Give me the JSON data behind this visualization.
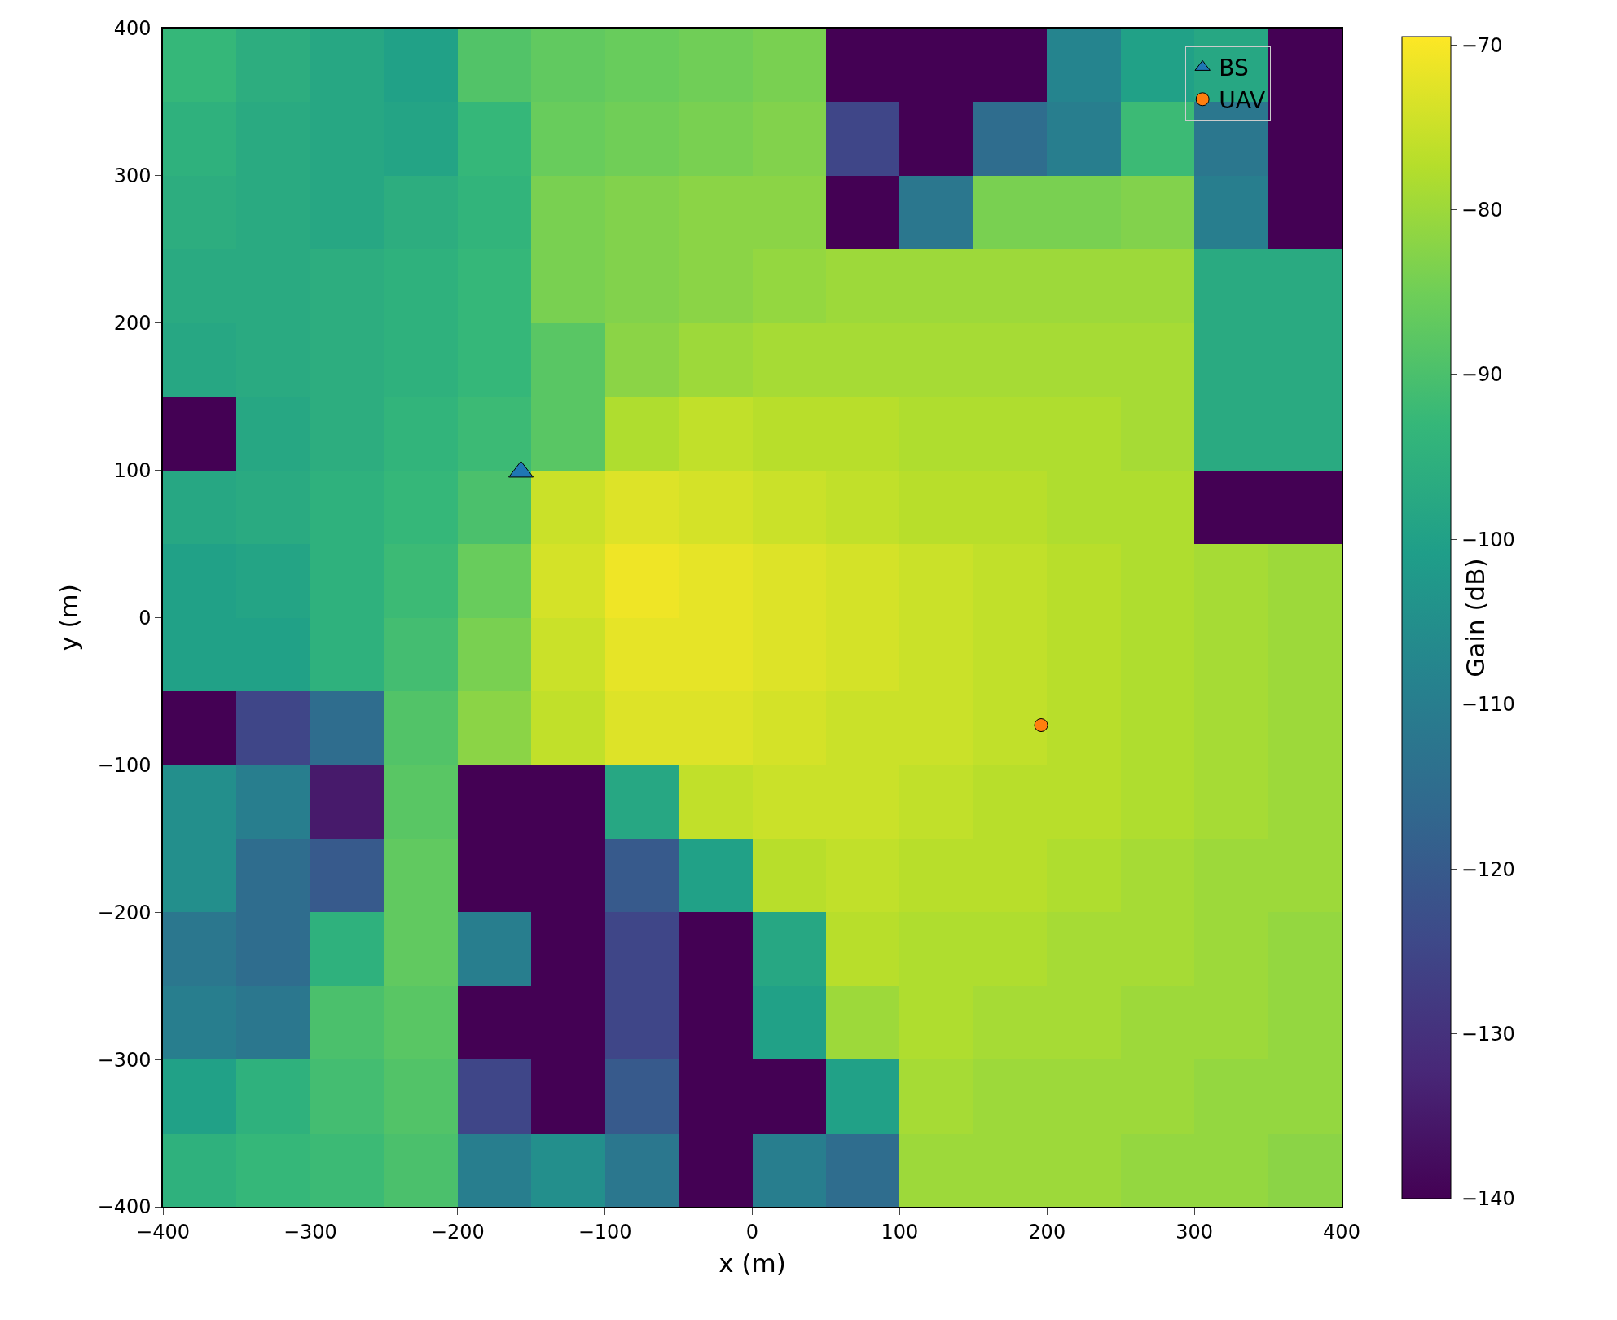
{
  "chart_data": {
    "type": "heatmap",
    "xlabel": "x (m)",
    "ylabel": "y (m)",
    "clabel": "Gain (dB)",
    "xlim": [
      -400,
      400
    ],
    "ylim": [
      -400,
      400
    ],
    "xticks": [
      -400,
      -300,
      -200,
      -100,
      0,
      100,
      200,
      300,
      400
    ],
    "yticks": [
      -400,
      -300,
      -200,
      -100,
      0,
      100,
      200,
      300,
      400
    ],
    "clim": [
      -140,
      -69.5
    ],
    "cticks": [
      -140,
      -130,
      -120,
      -110,
      -100,
      -90,
      -80,
      -70
    ],
    "legend": "top right",
    "cells": [
      [
        -93,
        -96,
        -98,
        -100,
        -89,
        -87,
        -86,
        -85,
        -84,
        -140,
        -140,
        -140,
        -108,
        -100,
        -98,
        -140
      ],
      [
        -95,
        -97,
        -98,
        -99,
        -93,
        -86,
        -85,
        -84,
        -83,
        -125,
        -140,
        -115,
        -110,
        -92,
        -112,
        -140
      ],
      [
        -96,
        -97,
        -98,
        -96,
        -94,
        -84,
        -83,
        -82,
        -82,
        -140,
        -112,
        -84,
        -84,
        -83,
        -110,
        -140
      ],
      [
        -97,
        -97,
        -96,
        -95,
        -93,
        -84,
        -83,
        -82,
        -81,
        -80,
        -80,
        -80,
        -80,
        -80,
        -97,
        -97
      ],
      [
        -98,
        -97,
        -96,
        -95,
        -93,
        -88,
        -82,
        -80,
        -79,
        -79,
        -79,
        -79,
        -79,
        -79,
        -97,
        -97
      ],
      [
        -140,
        -98,
        -96,
        -94,
        -92,
        -88,
        -78,
        -76,
        -77,
        -77,
        -78,
        -78,
        -78,
        -79,
        -97,
        -97
      ],
      [
        -98,
        -97,
        -95,
        -93,
        -90,
        -75,
        -73,
        -74,
        -75,
        -76,
        -77,
        -77,
        -78,
        -78,
        -140,
        -140
      ],
      [
        -100,
        -99,
        -95,
        -92,
        -86,
        -74,
        -71,
        -72,
        -73,
        -74,
        -75,
        -76,
        -77,
        -78,
        -79,
        -80
      ],
      [
        -100,
        -100,
        -95,
        -91,
        -84,
        -75,
        -72,
        -72,
        -73,
        -74,
        -75,
        -76,
        -77,
        -78,
        -79,
        -80
      ],
      [
        -140,
        -125,
        -115,
        -89,
        -82,
        -76,
        -73,
        -73,
        -74,
        -75,
        -75,
        -76,
        -77,
        -78,
        -79,
        -80
      ],
      [
        -105,
        -110,
        -135,
        -88,
        -140,
        -140,
        -98,
        -76,
        -75,
        -75,
        -76,
        -77,
        -77,
        -78,
        -79,
        -80
      ],
      [
        -105,
        -115,
        -120,
        -87,
        -140,
        -140,
        -120,
        -100,
        -77,
        -76,
        -77,
        -77,
        -78,
        -79,
        -80,
        -80
      ],
      [
        -112,
        -115,
        -95,
        -87,
        -110,
        -140,
        -125,
        -140,
        -98,
        -77,
        -78,
        -78,
        -79,
        -79,
        -80,
        -81
      ],
      [
        -110,
        -112,
        -90,
        -88,
        -140,
        -140,
        -125,
        -140,
        -100,
        -80,
        -78,
        -79,
        -79,
        -80,
        -80,
        -81
      ],
      [
        -100,
        -95,
        -91,
        -89,
        -125,
        -140,
        -120,
        -140,
        -140,
        -100,
        -79,
        -80,
        -80,
        -80,
        -81,
        -81
      ],
      [
        -95,
        -93,
        -92,
        -90,
        -110,
        -105,
        -112,
        -140,
        -110,
        -115,
        -80,
        -80,
        -80,
        -81,
        -81,
        -82
      ]
    ],
    "series": [
      {
        "type": "scatter",
        "name": "BS",
        "color": "#1f77b4",
        "marker": "triangle",
        "x": [
          -157
        ],
        "values": [
          99
        ]
      },
      {
        "type": "scatter",
        "name": "UAV",
        "color": "#ff7f0e",
        "marker": "circle",
        "x": [
          196
        ],
        "values": [
          -73
        ]
      }
    ]
  }
}
